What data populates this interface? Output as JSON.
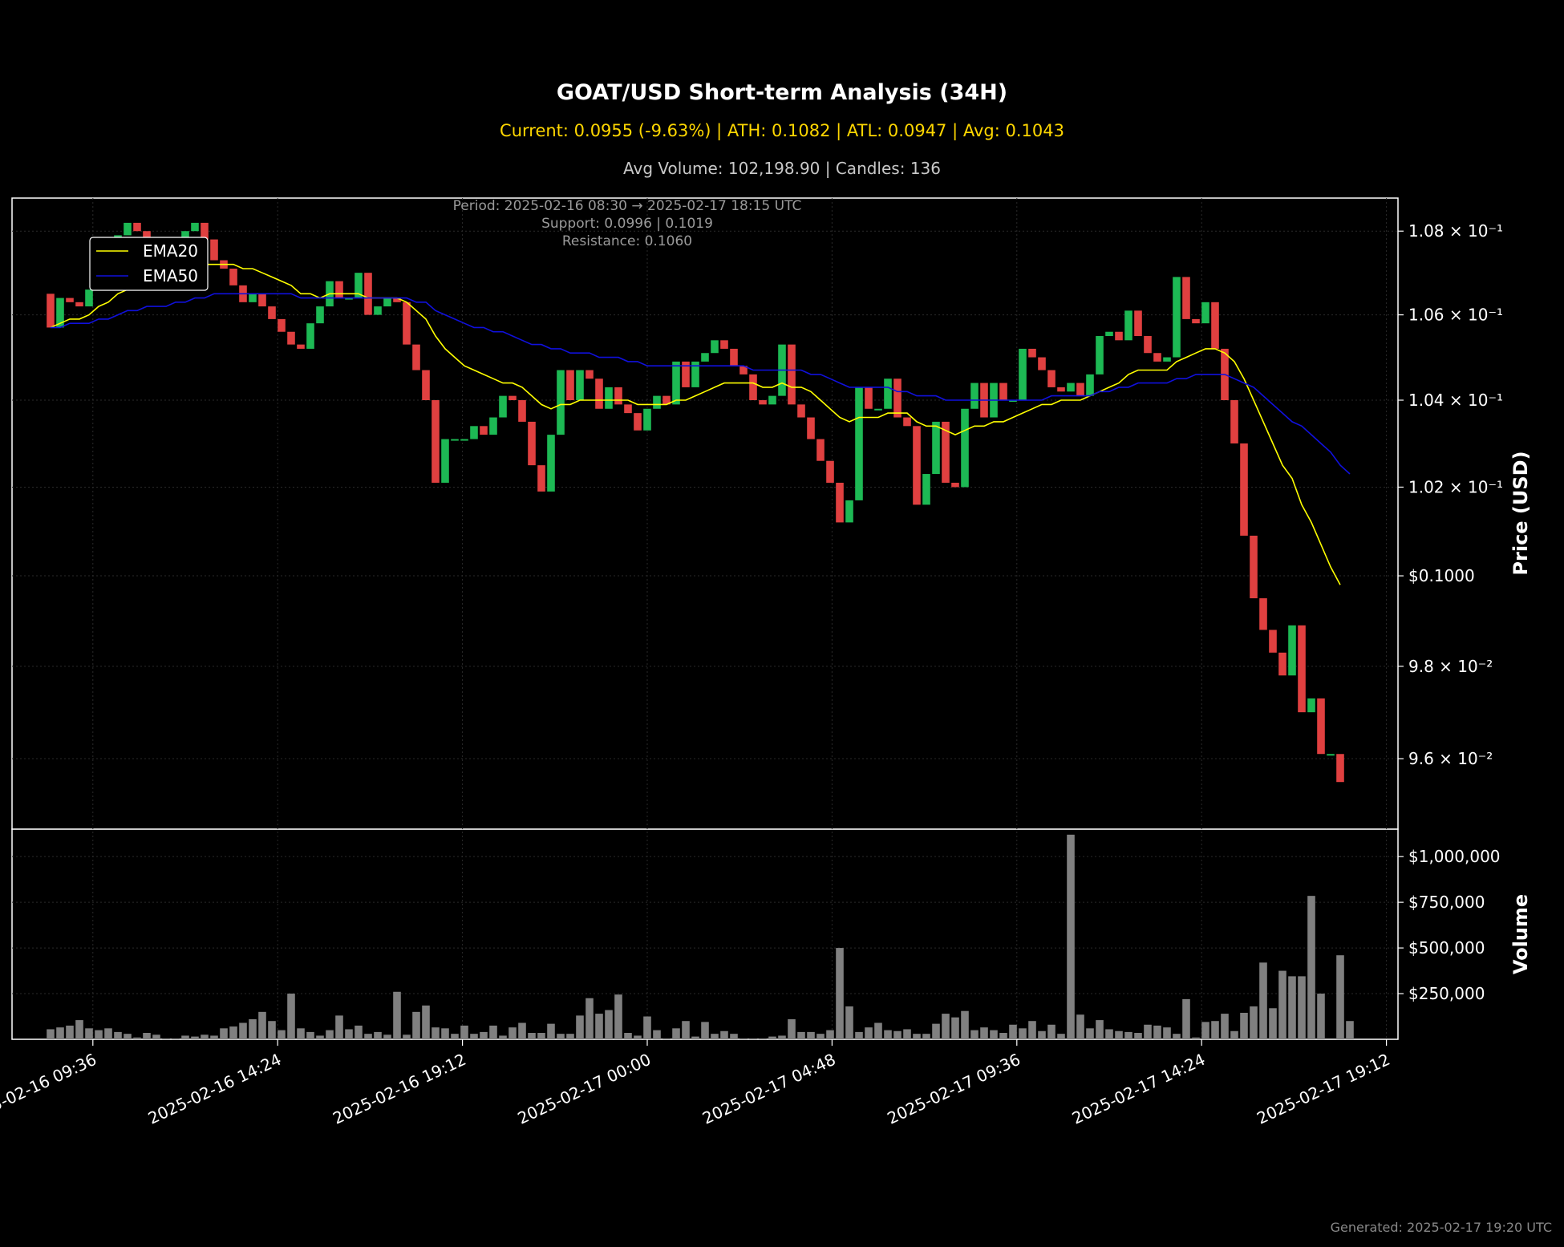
{
  "header": {
    "title": "GOAT/USD Short-term Analysis (34H)",
    "subtitle": "Current: 0.0955 (-9.63%) | ATH: 0.1082 | ATL: 0.0947 | Avg: 0.1043",
    "info": "Avg Volume: 102,198.90 | Candles: 136"
  },
  "annotations": {
    "period": "Period: 2025-02-16 08:30 → 2025-02-17 18:15 UTC",
    "support": "Support: 0.0996 | 0.1019",
    "resistance": "Resistance: 0.1060"
  },
  "footer": "Generated: 2025-02-17 19:20 UTC",
  "colors": {
    "up": "#1db954",
    "down": "#e04040",
    "ema20": "#ffff00",
    "ema50": "#1010dd",
    "volume": "#808080"
  },
  "chart_data": [
    {
      "type": "candlestick",
      "ylabel": "Price (USD)",
      "yscale": "log",
      "ylim": [
        0.0945,
        0.1088
      ],
      "yticks": [
        {
          "value": 0.096,
          "label": "9.6 × 10⁻²"
        },
        {
          "value": 0.098,
          "label": "9.8 × 10⁻²"
        },
        {
          "value": 0.1,
          "label": "$0.1000"
        },
        {
          "value": 0.102,
          "label": "1.02 × 10⁻¹"
        },
        {
          "value": 0.104,
          "label": "1.04 × 10⁻¹"
        },
        {
          "value": 0.106,
          "label": "1.06 × 10⁻¹"
        },
        {
          "value": 0.108,
          "label": "1.08 × 10⁻¹"
        }
      ],
      "xlim": [
        "2025-02-16 07:30",
        "2025-02-17 19:30"
      ],
      "xticks": [
        {
          "value": "2025-02-16 09:36",
          "label": "2025-02-16 09:36"
        },
        {
          "value": "2025-02-16 14:24",
          "label": "2025-02-16 14:24"
        },
        {
          "value": "2025-02-16 19:12",
          "label": "2025-02-16 19:12"
        },
        {
          "value": "2025-02-17 00:00",
          "label": "2025-02-17 00:00"
        },
        {
          "value": "2025-02-17 04:48",
          "label": "2025-02-17 04:48"
        },
        {
          "value": "2025-02-17 09:36",
          "label": "2025-02-17 09:36"
        },
        {
          "value": "2025-02-17 14:24",
          "label": "2025-02-17 14:24"
        },
        {
          "value": "2025-02-17 19:12",
          "label": "2025-02-17 19:12"
        }
      ],
      "grid": true,
      "legend": {
        "placement": "upper-left",
        "entries": [
          "EMA20",
          "EMA50"
        ]
      },
      "closes": [
        0.1057,
        0.1064,
        0.1063,
        0.1062,
        0.1066,
        0.1072,
        0.1076,
        0.1079,
        0.1082,
        0.108,
        0.1075,
        0.107,
        0.1072,
        0.1078,
        0.108,
        0.1082,
        0.1078,
        0.1073,
        0.1071,
        0.1067,
        0.1063,
        0.1065,
        0.1062,
        0.1059,
        0.1056,
        0.1053,
        0.1052,
        0.1058,
        0.1062,
        0.1068,
        0.1064,
        0.1064,
        0.107,
        0.106,
        0.1062,
        0.1064,
        0.1063,
        0.1053,
        0.1047,
        0.104,
        0.1021,
        0.1031,
        0.1031,
        0.1031,
        0.1034,
        0.1032,
        0.1036,
        0.1041,
        0.104,
        0.1035,
        0.1025,
        0.1019,
        0.1032,
        0.1047,
        0.104,
        0.1047,
        0.1045,
        0.1038,
        0.1043,
        0.1039,
        0.1037,
        0.1033,
        0.1038,
        0.1041,
        0.1039,
        0.1049,
        0.1043,
        0.1049,
        0.1051,
        0.1054,
        0.1052,
        0.1048,
        0.1046,
        0.104,
        0.1039,
        0.1041,
        0.1053,
        0.1039,
        0.1036,
        0.1031,
        0.1026,
        0.1021,
        0.1012,
        0.1017,
        0.1043,
        0.1038,
        0.1038,
        0.1045,
        0.1036,
        0.1034,
        0.1016,
        0.1023,
        0.1035,
        0.1021,
        0.102,
        0.1038,
        0.1044,
        0.1036,
        0.1044,
        0.104,
        0.104,
        0.1052,
        0.105,
        0.1047,
        0.1043,
        0.1042,
        0.1044,
        0.1041,
        0.1046,
        0.1055,
        0.1056,
        0.1054,
        0.1061,
        0.1055,
        0.1051,
        0.1049,
        0.105,
        0.1069,
        0.1059,
        0.1058,
        0.1063,
        0.1052,
        0.104,
        0.103,
        0.1009,
        0.0995,
        0.0988,
        0.0983,
        0.0978,
        0.0989,
        0.097,
        0.0973,
        0.0961,
        0.0961,
        0.0955
      ],
      "ema20": [
        0.1057,
        0.1058,
        0.1059,
        0.1059,
        0.106,
        0.1062,
        0.1063,
        0.1065,
        0.1066,
        0.1068,
        0.1068,
        0.1068,
        0.1069,
        0.107,
        0.1071,
        0.1072,
        0.1072,
        0.1072,
        0.1072,
        0.1072,
        0.1071,
        0.1071,
        0.107,
        0.1069,
        0.1068,
        0.1067,
        0.1065,
        0.1065,
        0.1064,
        0.1065,
        0.1065,
        0.1065,
        0.1065,
        0.1064,
        0.1064,
        0.1064,
        0.1064,
        0.1063,
        0.1061,
        0.1059,
        0.1055,
        0.1052,
        0.105,
        0.1048,
        0.1047,
        0.1046,
        0.1045,
        0.1044,
        0.1044,
        0.1043,
        0.1041,
        0.1039,
        0.1038,
        0.1039,
        0.1039,
        0.104,
        0.104,
        0.104,
        0.104,
        0.104,
        0.104,
        0.1039,
        0.1039,
        0.1039,
        0.1039,
        0.104,
        0.104,
        0.1041,
        0.1042,
        0.1043,
        0.1044,
        0.1044,
        0.1044,
        0.1044,
        0.1043,
        0.1043,
        0.1044,
        0.1043,
        0.1043,
        0.1042,
        0.104,
        0.1038,
        0.1036,
        0.1035,
        0.1036,
        0.1036,
        0.1036,
        0.1037,
        0.1037,
        0.1037,
        0.1035,
        0.1034,
        0.1034,
        0.1033,
        0.1032,
        0.1033,
        0.1034,
        0.1034,
        0.1035,
        0.1035,
        0.1036,
        0.1037,
        0.1038,
        0.1039,
        0.1039,
        0.104,
        0.104,
        0.104,
        0.1041,
        0.1042,
        0.1043,
        0.1044,
        0.1046,
        0.1047,
        0.1047,
        0.1047,
        0.1047,
        0.1049,
        0.105,
        0.1051,
        0.1052,
        0.1052,
        0.1051,
        0.1049,
        0.1045,
        0.104,
        0.1035,
        0.103,
        0.1025,
        0.1022,
        0.1016,
        0.1012,
        0.1007,
        0.1002,
        0.0998
      ],
      "ema50": [
        0.1057,
        0.1057,
        0.1058,
        0.1058,
        0.1058,
        0.1059,
        0.1059,
        0.106,
        0.1061,
        0.1061,
        0.1062,
        0.1062,
        0.1062,
        0.1063,
        0.1063,
        0.1064,
        0.1064,
        0.1065,
        0.1065,
        0.1065,
        0.1065,
        0.1065,
        0.1065,
        0.1065,
        0.1065,
        0.1065,
        0.1064,
        0.1064,
        0.1064,
        0.1064,
        0.1064,
        0.1064,
        0.1064,
        0.1064,
        0.1064,
        0.1064,
        0.1064,
        0.1064,
        0.1063,
        0.1063,
        0.1061,
        0.106,
        0.1059,
        0.1058,
        0.1057,
        0.1057,
        0.1056,
        0.1056,
        0.1055,
        0.1054,
        0.1053,
        0.1053,
        0.1052,
        0.1052,
        0.1051,
        0.1051,
        0.1051,
        0.105,
        0.105,
        0.105,
        0.1049,
        0.1049,
        0.1048,
        0.1048,
        0.1048,
        0.1048,
        0.1048,
        0.1048,
        0.1048,
        0.1048,
        0.1048,
        0.1048,
        0.1048,
        0.1047,
        0.1047,
        0.1047,
        0.1047,
        0.1047,
        0.1047,
        0.1046,
        0.1046,
        0.1045,
        0.1044,
        0.1043,
        0.1043,
        0.1043,
        0.1043,
        0.1043,
        0.1042,
        0.1042,
        0.1041,
        0.1041,
        0.1041,
        0.104,
        0.104,
        0.104,
        0.104,
        0.104,
        0.104,
        0.104,
        0.104,
        0.104,
        0.104,
        0.104,
        0.1041,
        0.1041,
        0.1041,
        0.1041,
        0.1041,
        0.1042,
        0.1042,
        0.1043,
        0.1043,
        0.1044,
        0.1044,
        0.1044,
        0.1044,
        0.1045,
        0.1045,
        0.1046,
        0.1046,
        0.1046,
        0.1046,
        0.1045,
        0.1044,
        0.1043,
        0.1041,
        0.1039,
        0.1037,
        0.1035,
        0.1034,
        0.1032,
        0.103,
        0.1028,
        0.1025,
        0.1023
      ]
    },
    {
      "type": "bar",
      "ylabel": "Volume",
      "ylim": [
        0,
        1150000
      ],
      "yticks": [
        {
          "value": 250000,
          "label": "$250,000"
        },
        {
          "value": 500000,
          "label": "$500,000"
        },
        {
          "value": 750000,
          "label": "$750,000"
        },
        {
          "value": 1000000,
          "label": "$1,000,000"
        }
      ],
      "values": [
        55000,
        65000,
        75000,
        105000,
        60000,
        50000,
        60000,
        40000,
        30000,
        10000,
        35000,
        25000,
        5000,
        5000,
        20000,
        15000,
        25000,
        20000,
        60000,
        70000,
        90000,
        110000,
        150000,
        100000,
        50000,
        250000,
        60000,
        40000,
        20000,
        50000,
        130000,
        55000,
        75000,
        30000,
        40000,
        25000,
        260000,
        25000,
        150000,
        185000,
        65000,
        60000,
        30000,
        75000,
        30000,
        40000,
        75000,
        20000,
        65000,
        90000,
        35000,
        35000,
        85000,
        30000,
        30000,
        130000,
        225000,
        140000,
        160000,
        245000,
        35000,
        20000,
        125000,
        50000,
        5000,
        60000,
        100000,
        15000,
        95000,
        30000,
        45000,
        30000,
        5000,
        5000,
        5000,
        15000,
        20000,
        110000,
        40000,
        40000,
        30000,
        50000,
        500000,
        180000,
        40000,
        65000,
        90000,
        50000,
        45000,
        55000,
        30000,
        30000,
        85000,
        140000,
        120000,
        155000,
        50000,
        65000,
        50000,
        35000,
        80000,
        60000,
        100000,
        45000,
        80000,
        30000,
        1120000,
        135000,
        60000,
        105000,
        55000,
        45000,
        40000,
        35000,
        80000,
        75000,
        65000,
        30000,
        220000,
        10000,
        95000,
        100000,
        140000,
        45000,
        145000,
        180000,
        420000,
        170000,
        375000,
        345000,
        345000,
        785000,
        250000,
        0,
        460000,
        100000
      ]
    }
  ]
}
